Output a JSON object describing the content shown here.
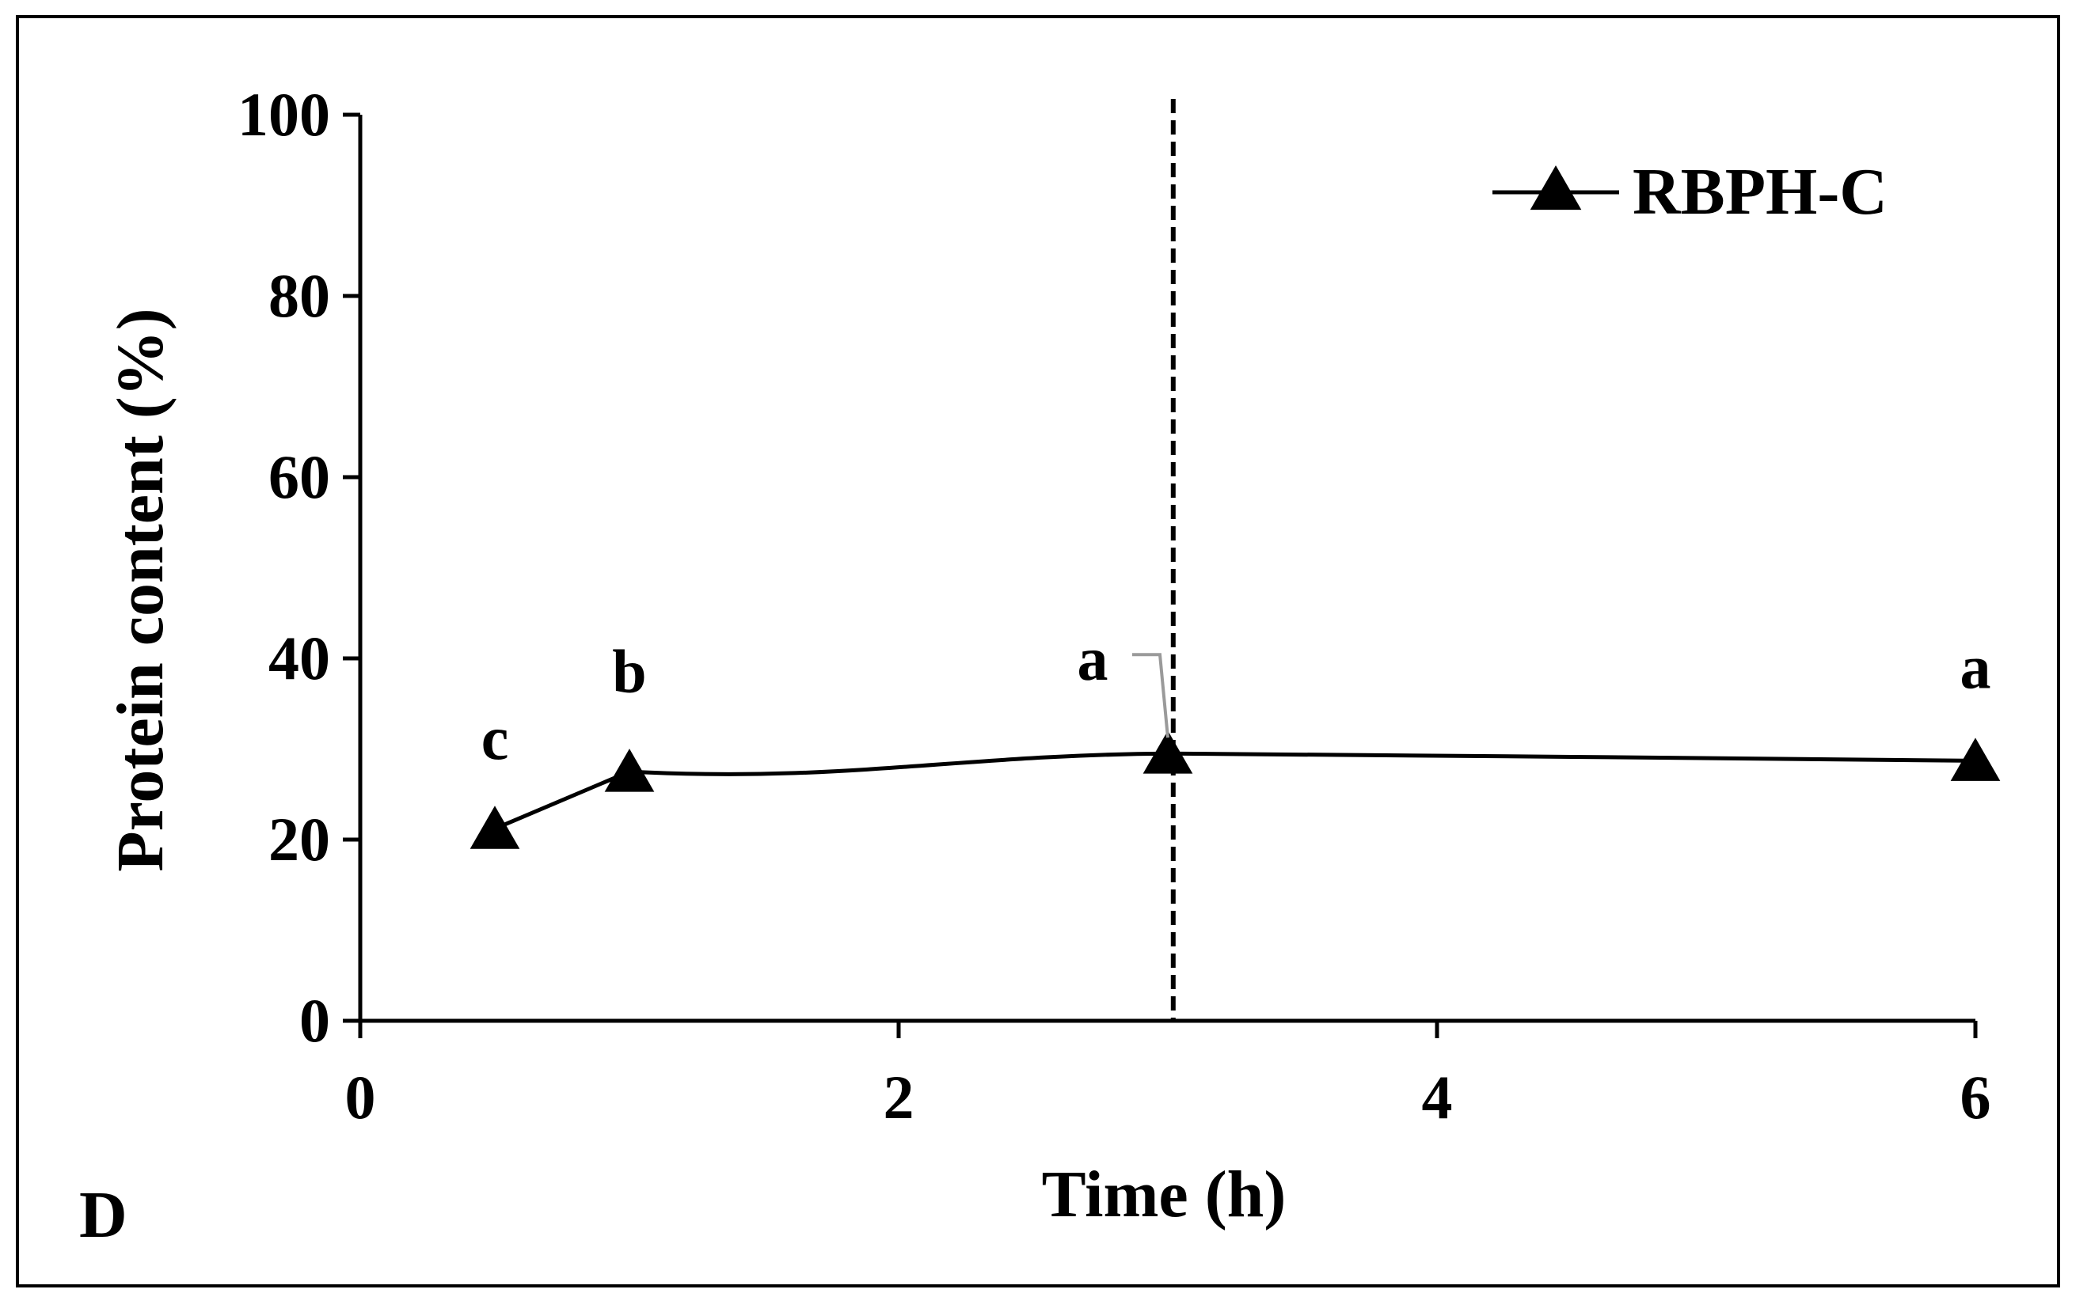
{
  "chart_data": {
    "type": "line",
    "panel_label": "D",
    "title": "",
    "xlabel": "Time (h)",
    "ylabel": "Protein content (%)",
    "xlim": [
      0,
      6
    ],
    "ylim": [
      0,
      100
    ],
    "xticks": [
      0,
      2,
      4,
      6
    ],
    "yticks": [
      0,
      20,
      40,
      60,
      80,
      100
    ],
    "grid": false,
    "legend_position": "top-right",
    "reference_line": {
      "type": "vertical",
      "style": "dashed",
      "x": 3.02
    },
    "series": [
      {
        "name": "RBPH-C",
        "marker": "triangle",
        "color": "#000000",
        "x": [
          0.5,
          1,
          3,
          6
        ],
        "y": [
          21.2,
          27.5,
          29.5,
          28.7
        ],
        "labels": [
          "c",
          "b",
          "a",
          "a"
        ]
      }
    ]
  }
}
